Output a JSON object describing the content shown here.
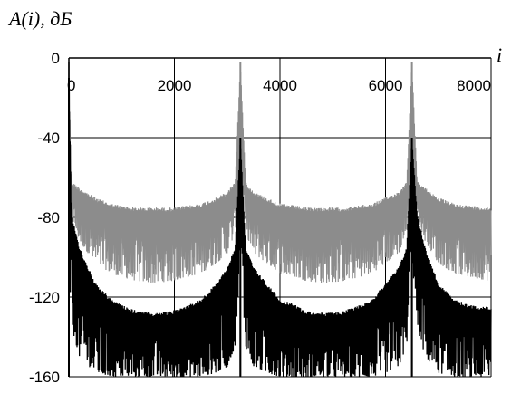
{
  "chart_data": {
    "type": "line",
    "ylabel": "A(i), дБ",
    "xlabel": "i",
    "x_range": [
      0,
      8000
    ],
    "y_range": [
      -160,
      0
    ],
    "x_ticks": [
      0,
      2000,
      4000,
      6000,
      8000
    ],
    "x_tick_labels": [
      "0",
      "2000",
      "4000",
      "6000",
      "8000"
    ],
    "y_ticks": [
      0,
      -40,
      -80,
      -120,
      -160
    ],
    "y_tick_labels": [
      "0",
      "-40",
      "-80",
      "-120",
      "-160"
    ],
    "grid": true,
    "peak_positions": [
      0,
      3250,
      6500
    ],
    "series": [
      {
        "color": "#8c8c8c",
        "x": [
          0,
          50,
          200,
          500,
          800,
          1000,
          1300,
          1625,
          1950,
          2250,
          2500,
          2800,
          3000,
          3150,
          3250,
          3350,
          3500,
          3750,
          4000,
          4300,
          4500,
          4875,
          5200,
          5500,
          5750,
          6000,
          6250,
          6400,
          6500,
          6600,
          6750,
          7000,
          7300,
          7600,
          8000
        ],
        "envelope_upper": [
          -2,
          -62,
          -65,
          -70,
          -73,
          -74,
          -75,
          -75,
          -75,
          -74,
          -73,
          -70,
          -67,
          -62,
          -2,
          -62,
          -67,
          -70,
          -73,
          -74,
          -75,
          -75,
          -75,
          -74,
          -73,
          -70,
          -67,
          -62,
          -2,
          -62,
          -65,
          -70,
          -73,
          -74,
          -75
        ],
        "envelope_lower": [
          -60,
          -80,
          -92,
          -103,
          -108,
          -110,
          -112,
          -113,
          -112,
          -110,
          -108,
          -103,
          -98,
          -88,
          -60,
          -88,
          -98,
          -103,
          -108,
          -110,
          -112,
          -113,
          -112,
          -110,
          -108,
          -103,
          -98,
          -88,
          -60,
          -80,
          -92,
          -103,
          -108,
          -110,
          -112
        ]
      },
      {
        "color": "#000000",
        "x": [
          0,
          50,
          200,
          500,
          800,
          1000,
          1300,
          1625,
          1950,
          2250,
          2500,
          2800,
          3000,
          3150,
          3250,
          3350,
          3500,
          3750,
          4000,
          4300,
          4500,
          4875,
          5200,
          5500,
          5750,
          6000,
          6250,
          6400,
          6500,
          6600,
          6750,
          7000,
          7300,
          7600,
          8000
        ],
        "envelope_upper": [
          -10,
          -78,
          -95,
          -113,
          -121,
          -124,
          -127,
          -128,
          -127,
          -124,
          -121,
          -113,
          -105,
          -95,
          -40,
          -95,
          -105,
          -113,
          -121,
          -124,
          -127,
          -128,
          -127,
          -124,
          -121,
          -113,
          -105,
          -95,
          -40,
          -78,
          -95,
          -113,
          -121,
          -124,
          -125
        ],
        "envelope_lower": [
          -100,
          -135,
          -150,
          -158,
          -160,
          -160,
          -160,
          -160,
          -160,
          -160,
          -160,
          -158,
          -155,
          -145,
          -100,
          -145,
          -155,
          -158,
          -160,
          -160,
          -160,
          -160,
          -160,
          -160,
          -160,
          -158,
          -155,
          -145,
          -100,
          -135,
          -150,
          -158,
          -160,
          -160,
          -160
        ]
      }
    ]
  }
}
